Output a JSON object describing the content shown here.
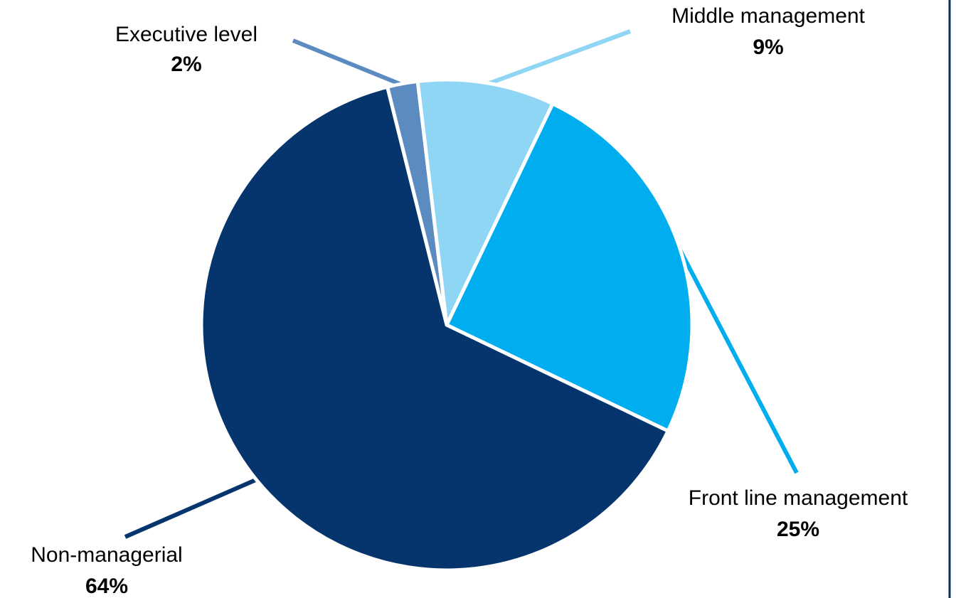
{
  "chart_data": {
    "type": "pie",
    "title": "",
    "slices": [
      {
        "label": "Executive level",
        "value": 2,
        "value_label": "2%",
        "color": "#5b8bc0"
      },
      {
        "label": "Middle management",
        "value": 9,
        "value_label": "9%",
        "color": "#8fd6f5"
      },
      {
        "label": "Front line management",
        "value": 25,
        "value_label": "25%",
        "color": "#00adef"
      },
      {
        "label": "Non-managerial",
        "value": 64,
        "value_label": "64%",
        "color": "#06356e"
      }
    ],
    "legend": "none",
    "data_labels": "outside with leader lines"
  }
}
